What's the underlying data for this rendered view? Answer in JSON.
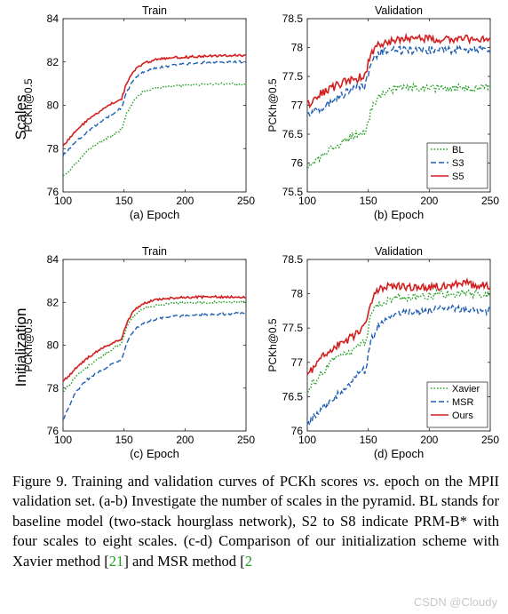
{
  "row_labels": [
    "Scales",
    "Initialization"
  ],
  "chart_data": [
    {
      "id": "a",
      "type": "line",
      "title": "Train",
      "xlabel": "(a) Epoch",
      "ylabel": "PCKh@0.5",
      "xlim": [
        100,
        250
      ],
      "ylim": [
        76,
        84
      ],
      "xticks": [
        100,
        150,
        200,
        250
      ],
      "yticks": [
        76,
        78,
        80,
        82,
        84
      ],
      "yticklabels": [
        "76",
        "78",
        "80",
        "82",
        "84"
      ],
      "legend": null,
      "series": [
        {
          "name": "BL",
          "color": "#1f9e1f",
          "dash": "dot",
          "jitter": 0.02,
          "x": [
            100,
            110,
            120,
            130,
            140,
            148,
            152,
            158,
            165,
            175,
            190,
            210,
            230,
            250
          ],
          "y": [
            76.7,
            77.3,
            77.9,
            78.3,
            78.6,
            78.9,
            79.6,
            80.2,
            80.6,
            80.8,
            80.9,
            80.95,
            81.0,
            80.95
          ]
        },
        {
          "name": "S3",
          "color": "#1f5fb4",
          "dash": "dash",
          "jitter": 0.02,
          "x": [
            100,
            110,
            120,
            130,
            140,
            148,
            152,
            158,
            165,
            175,
            190,
            210,
            230,
            250
          ],
          "y": [
            77.7,
            78.3,
            78.8,
            79.2,
            79.6,
            79.9,
            80.6,
            81.2,
            81.5,
            81.7,
            81.85,
            81.95,
            82.0,
            82.0
          ]
        },
        {
          "name": "S5",
          "color": "#d21f1f",
          "dash": "solid",
          "jitter": 0.02,
          "x": [
            100,
            110,
            120,
            130,
            140,
            148,
            152,
            158,
            165,
            175,
            190,
            210,
            230,
            250
          ],
          "y": [
            78.1,
            78.8,
            79.3,
            79.7,
            80.1,
            80.3,
            81.0,
            81.6,
            81.9,
            82.1,
            82.2,
            82.25,
            82.3,
            82.3
          ]
        }
      ]
    },
    {
      "id": "b",
      "type": "line",
      "title": "Validation",
      "xlabel": "(b) Epoch",
      "ylabel": "PCKh@0.5",
      "xlim": [
        100,
        250
      ],
      "ylim": [
        75.5,
        78.5
      ],
      "xticks": [
        100,
        150,
        200,
        250
      ],
      "yticks": [
        75.5,
        76,
        76.5,
        77,
        77.5,
        78,
        78.5
      ],
      "yticklabels": [
        "75.5",
        "76",
        "76.5",
        "77",
        "77.5",
        "78",
        "78.5"
      ],
      "legend": "bottom-right",
      "series": [
        {
          "name": "BL",
          "color": "#1f9e1f",
          "dash": "dot",
          "jitter": 0.07,
          "x": [
            100,
            110,
            120,
            130,
            140,
            148,
            152,
            158,
            165,
            175,
            190,
            210,
            230,
            250
          ],
          "y": [
            75.9,
            76.1,
            76.25,
            76.4,
            76.5,
            76.55,
            76.9,
            77.15,
            77.25,
            77.3,
            77.3,
            77.3,
            77.3,
            77.3
          ]
        },
        {
          "name": "S3",
          "color": "#1f5fb4",
          "dash": "dash",
          "jitter": 0.07,
          "x": [
            100,
            110,
            120,
            130,
            140,
            148,
            152,
            158,
            165,
            175,
            190,
            210,
            230,
            250
          ],
          "y": [
            76.8,
            76.95,
            77.05,
            77.2,
            77.3,
            77.35,
            77.7,
            77.9,
            77.95,
            77.95,
            77.95,
            77.95,
            77.95,
            77.95
          ]
        },
        {
          "name": "S5",
          "color": "#d21f1f",
          "dash": "solid",
          "jitter": 0.07,
          "x": [
            100,
            110,
            120,
            130,
            140,
            148,
            152,
            158,
            165,
            175,
            190,
            210,
            230,
            250
          ],
          "y": [
            77.0,
            77.2,
            77.3,
            77.4,
            77.45,
            77.55,
            77.9,
            78.05,
            78.1,
            78.15,
            78.15,
            78.15,
            78.15,
            78.15
          ]
        }
      ]
    },
    {
      "id": "c",
      "type": "line",
      "title": "Train",
      "xlabel": "(c) Epoch",
      "ylabel": "PCKh@0.5",
      "xlim": [
        100,
        250
      ],
      "ylim": [
        76,
        84
      ],
      "xticks": [
        100,
        150,
        200,
        250
      ],
      "yticks": [
        76,
        78,
        80,
        82,
        84
      ],
      "yticklabels": [
        "76",
        "78",
        "80",
        "82",
        "84"
      ],
      "legend": null,
      "series": [
        {
          "name": "Xavier",
          "color": "#1f9e1f",
          "dash": "dot",
          "jitter": 0.02,
          "x": [
            100,
            110,
            120,
            130,
            140,
            148,
            152,
            158,
            165,
            175,
            190,
            210,
            230,
            250
          ],
          "y": [
            77.8,
            78.5,
            79.0,
            79.4,
            79.8,
            80.1,
            80.8,
            81.4,
            81.7,
            81.85,
            81.95,
            82.0,
            82.0,
            82.0
          ]
        },
        {
          "name": "MSR",
          "color": "#1f5fb4",
          "dash": "dash",
          "jitter": 0.02,
          "x": [
            100,
            110,
            120,
            130,
            140,
            148,
            152,
            158,
            165,
            175,
            190,
            210,
            230,
            250
          ],
          "y": [
            76.5,
            77.8,
            78.4,
            78.8,
            79.1,
            79.3,
            80.1,
            80.7,
            81.0,
            81.2,
            81.35,
            81.4,
            81.45,
            81.5
          ]
        },
        {
          "name": "Ours",
          "color": "#d21f1f",
          "dash": "solid",
          "jitter": 0.02,
          "x": [
            100,
            110,
            120,
            130,
            140,
            148,
            152,
            158,
            165,
            175,
            190,
            210,
            230,
            250
          ],
          "y": [
            78.3,
            78.9,
            79.4,
            79.8,
            80.1,
            80.3,
            81.0,
            81.6,
            81.95,
            82.1,
            82.2,
            82.25,
            82.25,
            82.25
          ]
        }
      ]
    },
    {
      "id": "d",
      "type": "line",
      "title": "Validation",
      "xlabel": "(d) Epoch",
      "ylabel": "PCKh@0.5",
      "xlim": [
        100,
        250
      ],
      "ylim": [
        76,
        78.5
      ],
      "xticks": [
        100,
        150,
        200,
        250
      ],
      "yticks": [
        76,
        76.5,
        77,
        77.5,
        78,
        78.5
      ],
      "yticklabels": [
        "76",
        "76.5",
        "77",
        "77.5",
        "78",
        "78.5"
      ],
      "legend": "bottom-right",
      "series": [
        {
          "name": "Xavier",
          "color": "#1f9e1f",
          "dash": "dot",
          "jitter": 0.07,
          "x": [
            100,
            110,
            120,
            130,
            140,
            148,
            152,
            158,
            165,
            175,
            190,
            210,
            230,
            250
          ],
          "y": [
            76.6,
            76.8,
            77.0,
            77.1,
            77.2,
            77.3,
            77.7,
            77.85,
            77.9,
            77.95,
            77.95,
            78.0,
            78.0,
            78.0
          ]
        },
        {
          "name": "MSR",
          "color": "#1f5fb4",
          "dash": "dash",
          "jitter": 0.07,
          "x": [
            100,
            110,
            120,
            130,
            140,
            148,
            152,
            158,
            165,
            175,
            190,
            210,
            230,
            250
          ],
          "y": [
            76.1,
            76.3,
            76.45,
            76.6,
            76.8,
            76.9,
            77.3,
            77.55,
            77.65,
            77.7,
            77.75,
            77.8,
            77.75,
            77.75
          ]
        },
        {
          "name": "Ours",
          "color": "#d21f1f",
          "dash": "solid",
          "jitter": 0.07,
          "x": [
            100,
            110,
            120,
            130,
            140,
            148,
            152,
            158,
            165,
            175,
            190,
            210,
            230,
            250
          ],
          "y": [
            76.8,
            77.05,
            77.2,
            77.3,
            77.4,
            77.6,
            77.9,
            78.05,
            78.1,
            78.1,
            78.1,
            78.1,
            78.15,
            78.1
          ]
        }
      ]
    }
  ],
  "caption": {
    "intro": "Figure 9.  Training and validation curves of PCKh scores ",
    "vs": "vs",
    "mid": ". epoch on the MPII validation set. (a-b) Investigate the number of scales in the pyramid. BL stands for baseline model (two-stack hourglass network), S2 to S8 indicate PRM-B* with four scales to eight scales. (c-d) Comparison of our initialization scheme with Xavier method [",
    "ref1": "21",
    "mid2": "] and MSR method [",
    "ref2": "2"
  },
  "watermark": "CSDN @Cloudy"
}
